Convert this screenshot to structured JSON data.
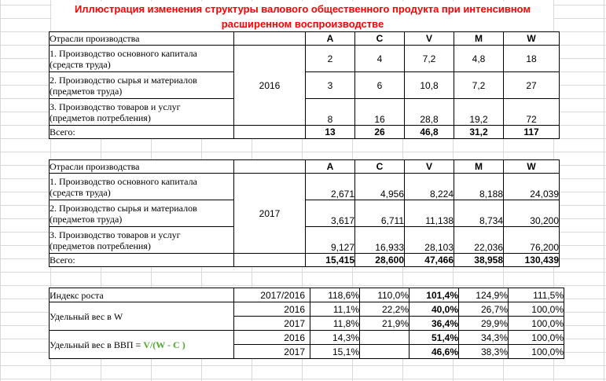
{
  "title": {
    "line1": "Иллюстрация изменения структуры валового общественного продукта  при интенсивном",
    "line2": "расширенном воспроизводстве"
  },
  "colors": {
    "title": "#ff0000",
    "highlight_red": "#ff0000",
    "highlight_blue": "#0070c0",
    "highlight_green": "#4ea72e"
  },
  "t2016": {
    "header_label": "Отрасли производства",
    "cols": [
      "A",
      "C",
      "V",
      "M",
      "W"
    ],
    "year": "2016",
    "rows": [
      {
        "l1": "1. Производство основного капитала",
        "l2": "(средств труда)",
        "v": [
          "2",
          "4",
          "7,2",
          "4,8",
          "18"
        ]
      },
      {
        "l1": "2. Производство сырья и материалов",
        "l2": "(предметов труда)",
        "v": [
          "3",
          "6",
          "10,8",
          "7,2",
          "27"
        ]
      },
      {
        "l1": "3. Производство товаров и услуг",
        "l2": "(предметов потребления)",
        "v": [
          "8",
          "16",
          "28,8",
          "19,2",
          "72"
        ]
      }
    ],
    "total_label": "Всего:",
    "totals": [
      "13",
      "26",
      "46,8",
      "31,2",
      "117"
    ]
  },
  "t2017": {
    "header_label": "Отрасли производства",
    "cols": [
      "A",
      "C",
      "V",
      "M",
      "W"
    ],
    "year": "2017",
    "rows": [
      {
        "l1": "1. Производство основного капитала",
        "l2": "(средств труда)",
        "v": [
          "2,671",
          "4,956",
          "8,224",
          "8,188",
          "24,039"
        ]
      },
      {
        "l1": "2. Производство сырья и материалов",
        "l2": "(предметов труда)",
        "v": [
          "3,617",
          "6,711",
          "11,138",
          "8,734",
          "30,200"
        ]
      },
      {
        "l1": "3. Производство товаров и услуг",
        "l2": "(предметов потребления)",
        "v": [
          "9,127",
          "16,933",
          "28,103",
          "22,036",
          "76,200"
        ]
      }
    ],
    "total_label": "Всего:",
    "totals": [
      "15,415",
      "28,600",
      "47,466",
      "38,958",
      "130,439"
    ]
  },
  "idx": {
    "growth": {
      "label": "Индекс роста",
      "period": "2017/2016",
      "v": [
        "118,6%",
        "110,0%",
        "101,4%",
        "124,9%",
        "111,5%"
      ]
    },
    "share_w": {
      "label": "Удельный вес в W",
      "rows": [
        {
          "year": "2016",
          "v": [
            "11,1%",
            "22,2%",
            "40,0%",
            "26,7%",
            "100,0%"
          ]
        },
        {
          "year": "2017",
          "v": [
            "11,8%",
            "21,9%",
            "36,4%",
            "29,9%",
            "100,0%"
          ]
        }
      ]
    },
    "share_gdp": {
      "label": "Удельный вес в ВВП =",
      "formula": "V/(W - C )",
      "rows": [
        {
          "year": "2016",
          "v": [
            "14,3%",
            "",
            "51,4%",
            "34,3%",
            "100,0%"
          ]
        },
        {
          "year": "2017",
          "v": [
            "15,1%",
            "",
            "46,6%",
            "38,3%",
            "100,0%"
          ]
        }
      ]
    }
  }
}
